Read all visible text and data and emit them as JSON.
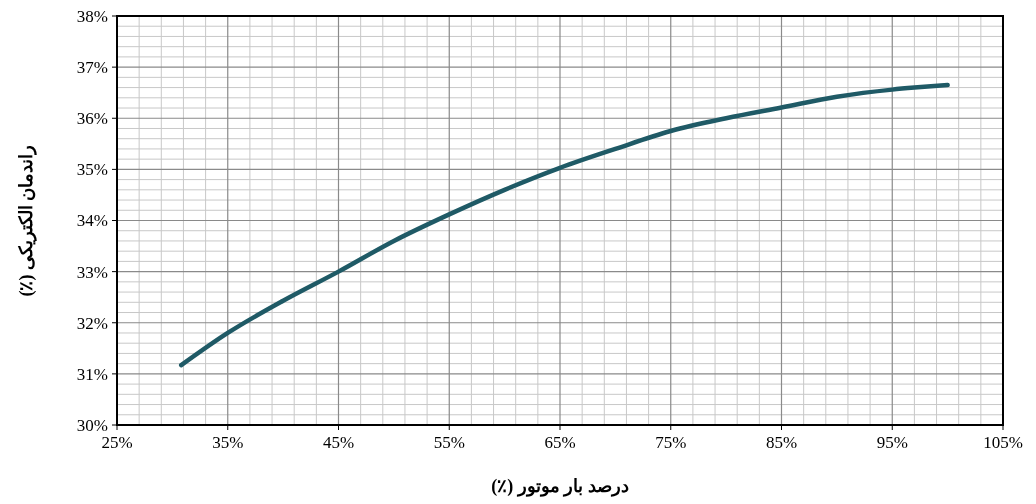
{
  "chart_data": {
    "type": "line",
    "xlabel": "درصد بار موتور (٪)",
    "ylabel": "راندمان الکتریکی (٪)",
    "x": [
      30.8,
      35,
      40,
      45,
      50,
      55,
      60,
      65,
      70,
      75,
      80,
      85,
      90,
      95,
      97,
      100
    ],
    "series": [
      {
        "color": "#1f5a66",
        "values": [
          31.17,
          31.8,
          32.43,
          33.0,
          33.6,
          34.12,
          34.6,
          35.03,
          35.4,
          35.75,
          36.0,
          36.21,
          36.42,
          36.56,
          36.6,
          36.65
        ]
      }
    ],
    "xlim": [
      25,
      105
    ],
    "ylim": [
      30,
      38
    ],
    "xticks": [
      {
        "value": 25,
        "label": "25%"
      },
      {
        "value": 35,
        "label": "35%"
      },
      {
        "value": 45,
        "label": "45%"
      },
      {
        "value": 55,
        "label": "55%"
      },
      {
        "value": 65,
        "label": "65%"
      },
      {
        "value": 75,
        "label": "75%"
      },
      {
        "value": 85,
        "label": "85%"
      },
      {
        "value": 95,
        "label": "95%"
      },
      {
        "value": 105,
        "label": "105%"
      }
    ],
    "yticks": [
      {
        "value": 30,
        "label": "30%"
      },
      {
        "value": 31,
        "label": "31%"
      },
      {
        "value": 32,
        "label": "32%"
      },
      {
        "value": 33,
        "label": "33%"
      },
      {
        "value": 34,
        "label": "34%"
      },
      {
        "value": 35,
        "label": "35%"
      },
      {
        "value": 36,
        "label": "36%"
      },
      {
        "value": 37,
        "label": "37%"
      },
      {
        "value": 38,
        "label": "38%"
      }
    ],
    "grid": true,
    "marker": "none",
    "line_style": "solid"
  }
}
